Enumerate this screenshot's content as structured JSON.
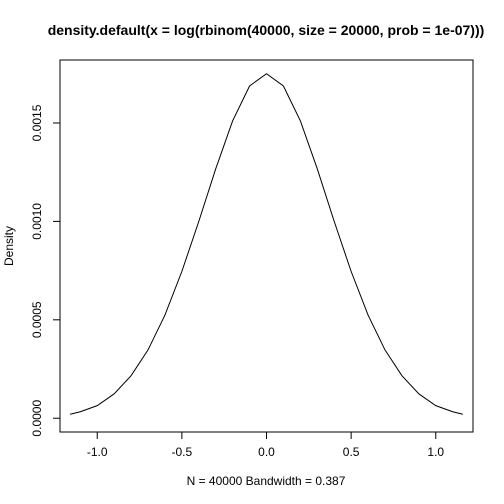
{
  "chart_data": {
    "type": "line",
    "title": "density.default(x = log(rbinom(40000, size = 20000, prob = 1e-07)))",
    "xlabel": "N = 40000   Bandwidth = 0.387",
    "ylabel": "Density",
    "xlim": [
      -1.22,
      1.22
    ],
    "ylim": [
      -7e-05,
      0.00182
    ],
    "x_ticks": [
      -1.0,
      -0.5,
      0.0,
      0.5,
      1.0
    ],
    "x_tick_labels": [
      "-1.0",
      "-0.5",
      "0.0",
      "0.5",
      "1.0"
    ],
    "y_ticks": [
      0.0,
      0.0005,
      0.001,
      0.0015
    ],
    "y_tick_labels": [
      "0.0000",
      "0.0005",
      "0.0010",
      "0.0015"
    ],
    "grid": false,
    "legend": "none",
    "line_color": "#000000",
    "series": [
      {
        "x": [
          -1.16,
          -1.1,
          -1.0,
          -0.9,
          -0.8,
          -0.7,
          -0.6,
          -0.5,
          -0.4,
          -0.3,
          -0.2,
          -0.1,
          0.0,
          0.1,
          0.2,
          0.3,
          0.4,
          0.5,
          0.6,
          0.7,
          0.8,
          0.9,
          1.0,
          1.1,
          1.16
        ],
        "y": [
          2e-05,
          3.3e-05,
          6.4e-05,
          0.000124,
          0.000216,
          0.000347,
          0.000524,
          0.000746,
          0.001,
          0.001267,
          0.001511,
          0.001688,
          0.00175,
          0.001688,
          0.001511,
          0.001267,
          0.001,
          0.000746,
          0.000524,
          0.000347,
          0.000216,
          0.000124,
          6.4e-05,
          3.3e-05,
          2e-05
        ]
      }
    ]
  }
}
